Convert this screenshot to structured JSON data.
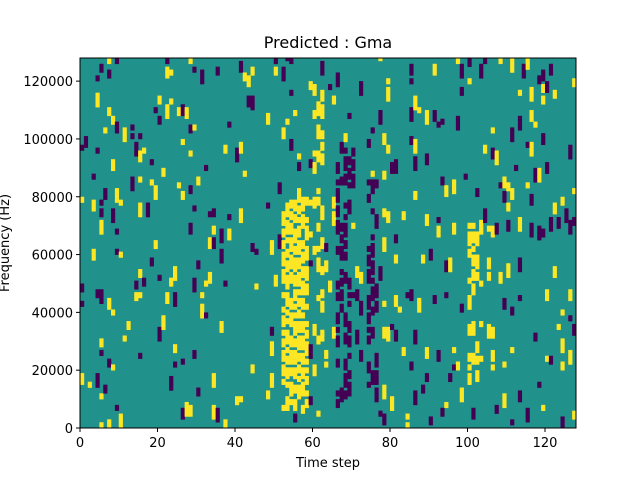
{
  "chart_data": {
    "type": "heatmap",
    "title": "Predicted : Gma",
    "xlabel": "Time step",
    "ylabel": "Frequency (Hz)",
    "xlim": [
      0,
      128
    ],
    "ylim": [
      0,
      128000
    ],
    "xticks": [
      0,
      20,
      40,
      60,
      80,
      100,
      120
    ],
    "yticks": [
      0,
      20000,
      40000,
      60000,
      80000,
      100000,
      120000
    ],
    "colormap": {
      "low_value": "#440154",
      "mid_value": "#21918c",
      "high_value": "#fde725"
    },
    "background_value": "mid",
    "grid": false
  }
}
